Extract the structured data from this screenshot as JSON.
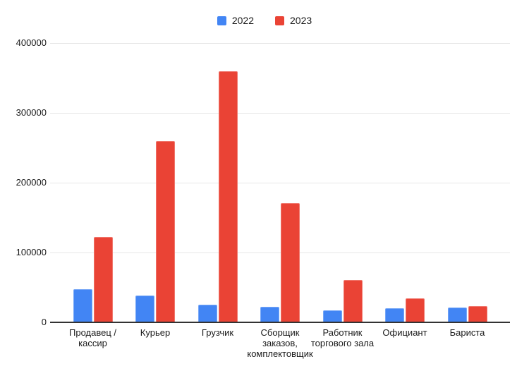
{
  "chart_data": {
    "type": "bar",
    "title": "",
    "xlabel": "",
    "ylabel": "",
    "categories": [
      "Продавец / кассир",
      "Курьер",
      "Грузчик",
      "Сборщик заказов, комплектовщик",
      "Работник торгового зала",
      "Официант",
      "Бариста"
    ],
    "category_label_lines": [
      [
        "Продавец /",
        "кассир"
      ],
      [
        "Курьер"
      ],
      [
        "Грузчик"
      ],
      [
        "Сборщик",
        "заказов,",
        "комплектовщик"
      ],
      [
        "Работник",
        "торгового зала"
      ],
      [
        "Официант"
      ],
      [
        "Бариста"
      ]
    ],
    "series": [
      {
        "name": "2022",
        "color": "#4285F4",
        "values": [
          47000,
          38000,
          25000,
          22000,
          17000,
          20000,
          21000
        ]
      },
      {
        "name": "2023",
        "color": "#EA4335",
        "values": [
          122000,
          260000,
          360000,
          171000,
          61000,
          34000,
          23000
        ]
      }
    ],
    "ylim": [
      0,
      400000
    ],
    "yticks": [
      {
        "value": 0,
        "label": "0"
      },
      {
        "value": 100000,
        "label": "100000"
      },
      {
        "value": 200000,
        "label": "200000"
      },
      {
        "value": 300000,
        "label": "300000"
      },
      {
        "value": 400000,
        "label": "400000"
      }
    ],
    "grid": true,
    "legend_position": "top"
  },
  "colors": {
    "background": "#ffffff",
    "axis": "#333333",
    "gridline": "#e6e6e6",
    "text": "#1a1a1a",
    "series_2022": "#4285F4",
    "series_2023": "#EA4335"
  }
}
